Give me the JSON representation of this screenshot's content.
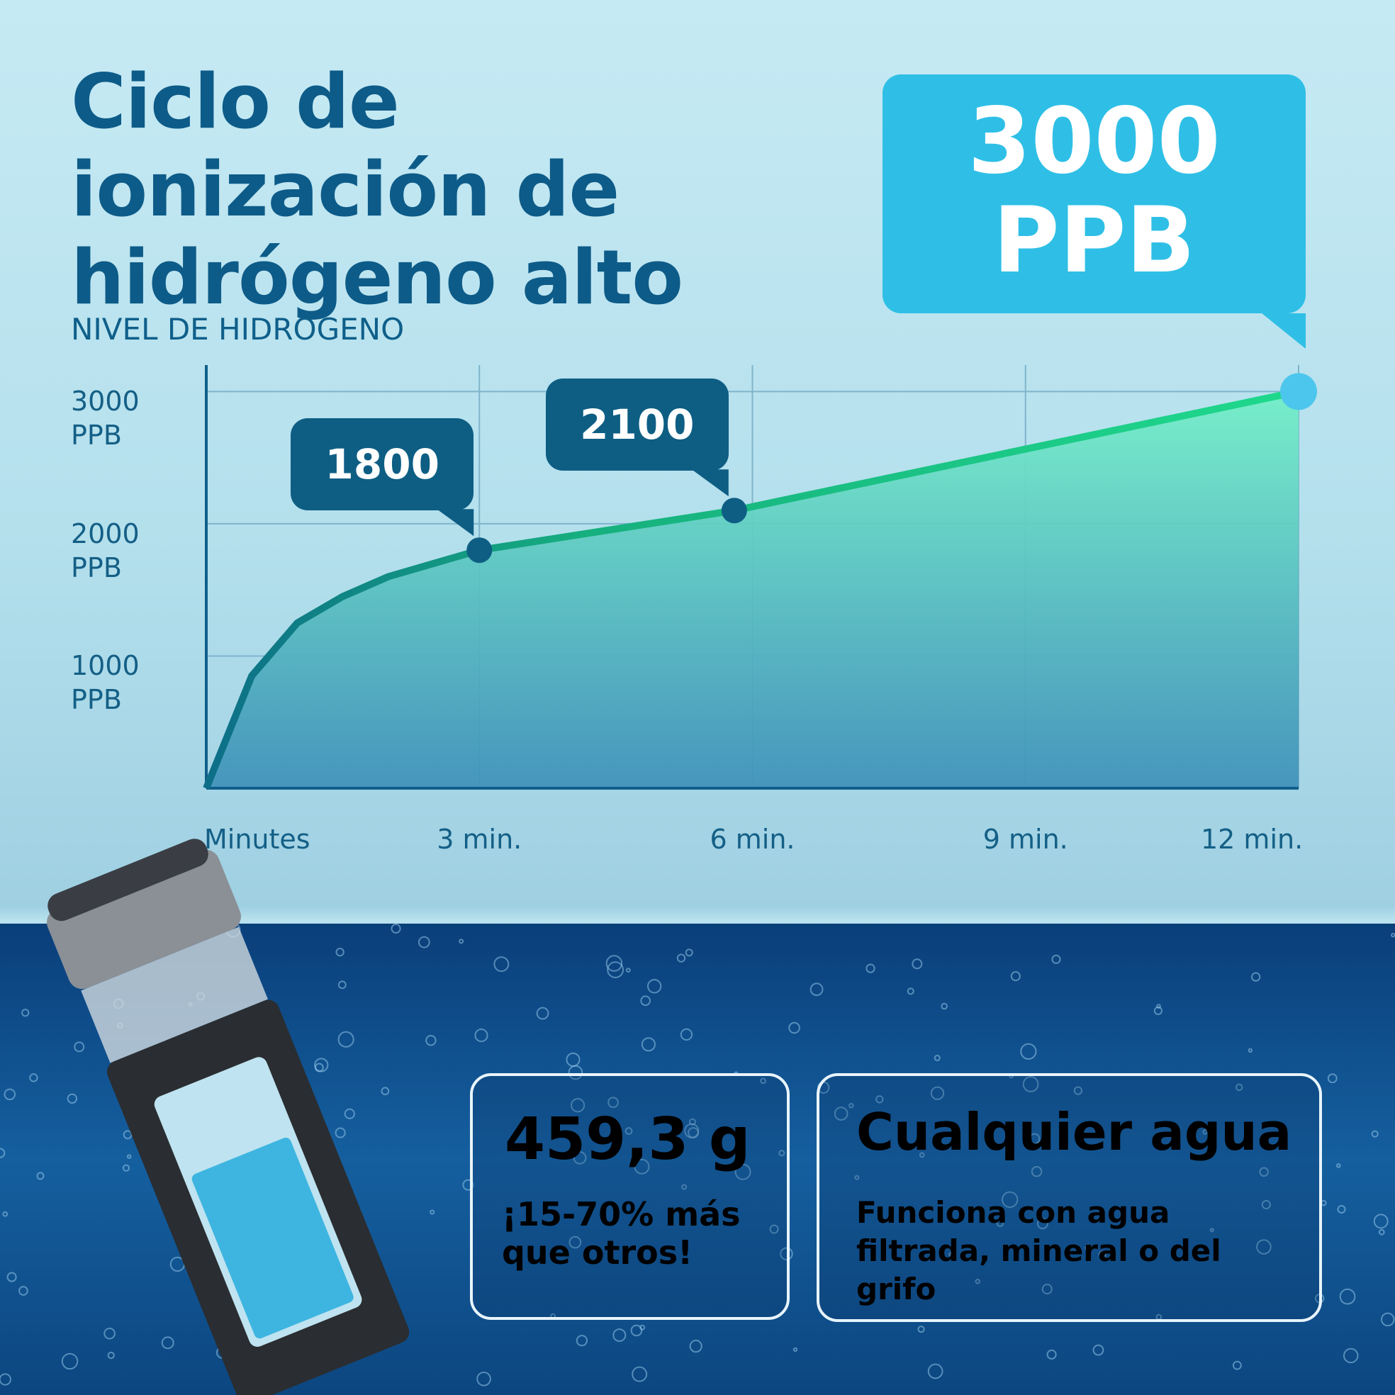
{
  "title": "Ciclo de ionización de hidrógeno alto",
  "chart_data": {
    "type": "area-line",
    "ylabel": "NIVEL DE HIDRÓGENO",
    "x": [
      0,
      0.5,
      1,
      1.5,
      2,
      3,
      5.8,
      12
    ],
    "values": [
      0,
      850,
      1250,
      1450,
      1600,
      1800,
      2100,
      3000
    ],
    "value_labels": [
      null,
      null,
      null,
      null,
      null,
      null,
      null,
      "3000 PPB"
    ],
    "xlim": [
      0,
      12
    ],
    "xticks": [
      {
        "value": 0,
        "label": "Minutes"
      },
      {
        "value": 3,
        "label": "3 min."
      },
      {
        "value": 6,
        "label": "6 min."
      },
      {
        "value": 9,
        "label": "9 min."
      },
      {
        "value": 12,
        "label": "12 min."
      }
    ],
    "ylim": [
      0,
      3200
    ],
    "yticks": [
      {
        "value": 1000,
        "label": "1000 PPB"
      },
      {
        "value": 2000,
        "label": "2000 PPB"
      },
      {
        "value": 3000,
        "label": "3000 PPB"
      }
    ],
    "color": "#1fd28a",
    "grid": true
  },
  "cards": [
    {
      "heading": "459,3 g",
      "text": "¡15-70% más que otros!"
    },
    {
      "heading": "Cualquier agua",
      "text": "Funciona con agua filtrada, mineral o del grifo"
    }
  ]
}
